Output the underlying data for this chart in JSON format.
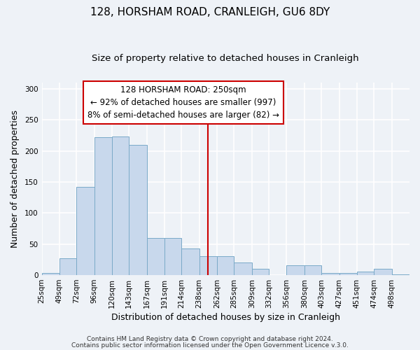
{
  "title": "128, HORSHAM ROAD, CRANLEIGH, GU6 8DY",
  "subtitle": "Size of property relative to detached houses in Cranleigh",
  "xlabel": "Distribution of detached houses by size in Cranleigh",
  "ylabel": "Number of detached properties",
  "bin_labels": [
    "25sqm",
    "49sqm",
    "72sqm",
    "96sqm",
    "120sqm",
    "143sqm",
    "167sqm",
    "191sqm",
    "214sqm",
    "238sqm",
    "262sqm",
    "285sqm",
    "309sqm",
    "332sqm",
    "356sqm",
    "380sqm",
    "403sqm",
    "427sqm",
    "451sqm",
    "474sqm",
    "498sqm"
  ],
  "bin_edges": [
    25,
    49,
    72,
    96,
    120,
    143,
    167,
    191,
    214,
    238,
    262,
    285,
    309,
    332,
    356,
    380,
    403,
    427,
    451,
    474,
    498
  ],
  "bar_heights": [
    3,
    27,
    142,
    222,
    223,
    210,
    60,
    60,
    43,
    30,
    30,
    20,
    10,
    0,
    16,
    16,
    3,
    3,
    6,
    10,
    1
  ],
  "bar_color": "#c8d8ec",
  "bar_edge_color": "#7aaac8",
  "ylim": [
    0,
    310
  ],
  "yticks": [
    0,
    50,
    100,
    150,
    200,
    250,
    300
  ],
  "vline_x": 250,
  "vline_color": "#cc0000",
  "annotation_line1": "128 HORSHAM ROAD: 250sqm",
  "annotation_line2": "← 92% of detached houses are smaller (997)",
  "annotation_line3": "8% of semi-detached houses are larger (82) →",
  "footer1": "Contains HM Land Registry data © Crown copyright and database right 2024.",
  "footer2": "Contains public sector information licensed under the Open Government Licence v.3.0.",
  "bg_color": "#eef2f7",
  "grid_color": "#ffffff",
  "title_fontsize": 11,
  "subtitle_fontsize": 9.5,
  "axis_label_fontsize": 9,
  "tick_fontsize": 7.5,
  "annot_fontsize": 8.5,
  "footer_fontsize": 6.5
}
